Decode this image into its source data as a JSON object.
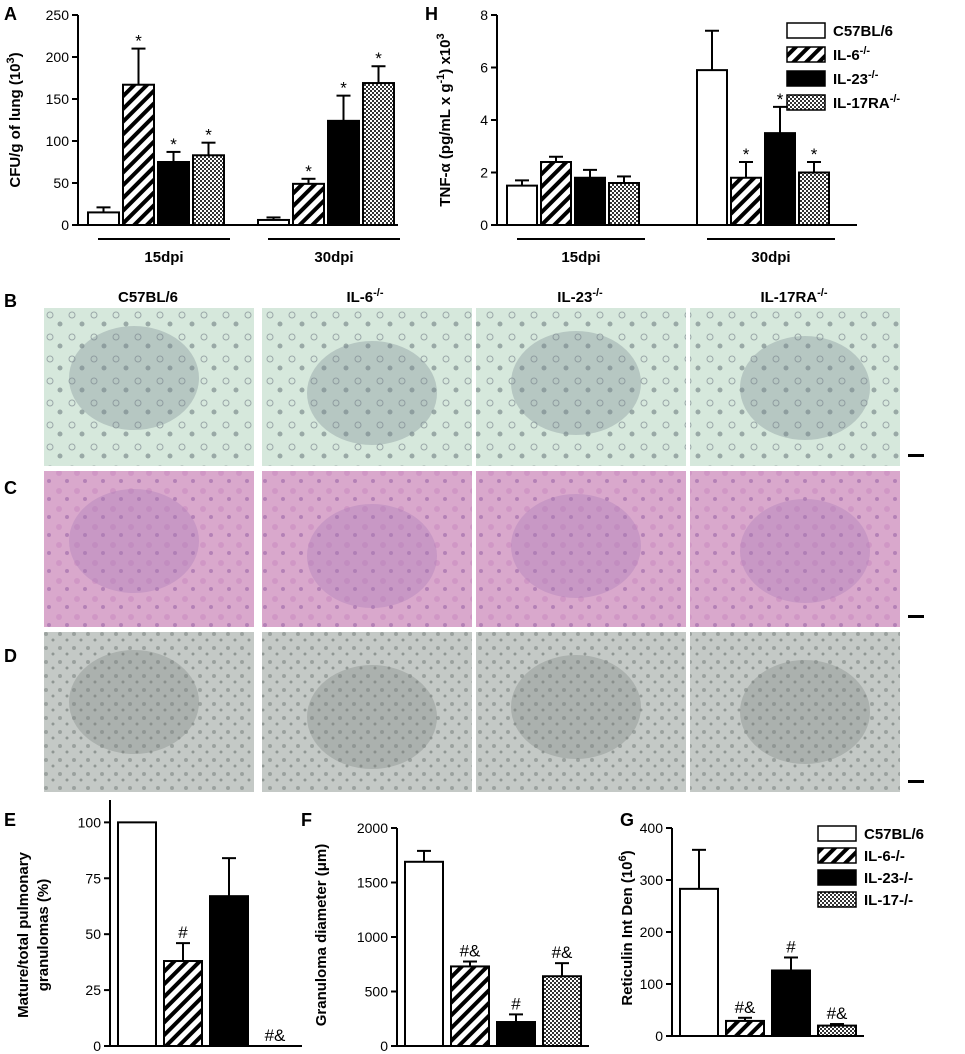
{
  "colors": {
    "white": "#ffffff",
    "black": "#000000",
    "stain_green": "#d6e8dc",
    "stain_he": "#d9a8cc",
    "stain_ret": "#c4c9c6"
  },
  "panel_labels": {
    "A": "A",
    "H": "H",
    "B": "B",
    "C": "C",
    "D": "D",
    "E": "E",
    "F": "F",
    "G": "G"
  },
  "legend_top": [
    {
      "label": "C57BL/6",
      "fill": "white"
    },
    {
      "label": "IL-6",
      "sup": "-/-",
      "fill": "hatch"
    },
    {
      "label": "IL-23",
      "sup": "-/-",
      "fill": "black"
    },
    {
      "label": "IL-17RA",
      "sup": "-/-",
      "fill": "check"
    }
  ],
  "legend_bottom": [
    {
      "label": "C57BL/6",
      "fill": "white"
    },
    {
      "label": "IL-6-/-",
      "fill": "hatch"
    },
    {
      "label": "IL-23-/-",
      "fill": "black"
    },
    {
      "label": "IL-17-/-",
      "fill": "check"
    }
  ],
  "histology": {
    "columns": [
      {
        "label": "C57BL/6",
        "sup": ""
      },
      {
        "label": "IL-6",
        "sup": "-/-"
      },
      {
        "label": "IL-23",
        "sup": "-/-"
      },
      {
        "label": "IL-17RA",
        "sup": "-/-"
      }
    ],
    "rows": [
      "B",
      "C",
      "D"
    ]
  },
  "chart_data": [
    {
      "id": "A",
      "type": "bar",
      "ylabel": "CFU/g of lung (10",
      "ylabel_sup": "3",
      "ylabel_end": ")",
      "ylim": [
        0,
        250
      ],
      "yticks": [
        0,
        50,
        100,
        150,
        200,
        250
      ],
      "groups": [
        "15dpi",
        "30dpi"
      ],
      "series": [
        {
          "name": "C57BL/6",
          "fill": "white",
          "values": [
            15,
            6
          ],
          "errors": [
            6,
            3
          ],
          "labels": [
            "",
            ""
          ]
        },
        {
          "name": "IL-6-/-",
          "fill": "hatch",
          "values": [
            167,
            49
          ],
          "errors": [
            43,
            6
          ],
          "labels": [
            "*",
            "*"
          ]
        },
        {
          "name": "IL-23-/-",
          "fill": "black",
          "values": [
            75,
            124
          ],
          "errors": [
            12,
            30
          ],
          "labels": [
            "*",
            "*"
          ]
        },
        {
          "name": "IL-17RA-/-",
          "fill": "check",
          "values": [
            83,
            169
          ],
          "errors": [
            15,
            20
          ],
          "labels": [
            "*",
            "*"
          ]
        }
      ]
    },
    {
      "id": "H",
      "type": "bar",
      "ylabel": "TNF-α (pg/mL x g",
      "ylabel_sup": "-1",
      "ylabel_end": ") x10",
      "ylabel_sup2": "3",
      "ylim": [
        0,
        8
      ],
      "yticks": [
        0,
        2,
        4,
        6,
        8
      ],
      "groups": [
        "15dpi",
        "30dpi"
      ],
      "series": [
        {
          "name": "C57BL/6",
          "fill": "white",
          "values": [
            1.5,
            5.9
          ],
          "errors": [
            0.2,
            1.5
          ],
          "labels": [
            "",
            ""
          ]
        },
        {
          "name": "IL-6-/-",
          "fill": "hatch",
          "values": [
            2.4,
            1.8
          ],
          "errors": [
            0.2,
            0.6
          ],
          "labels": [
            "",
            "*"
          ]
        },
        {
          "name": "IL-23-/-",
          "fill": "black",
          "values": [
            1.8,
            3.5
          ],
          "errors": [
            0.3,
            1.0
          ],
          "labels": [
            "",
            "*"
          ]
        },
        {
          "name": "IL-17RA-/-",
          "fill": "check",
          "values": [
            1.6,
            2.0
          ],
          "errors": [
            0.25,
            0.4
          ],
          "labels": [
            "",
            "*"
          ]
        }
      ]
    },
    {
      "id": "E",
      "type": "bar",
      "ylabel": "Mature/total pulmonary",
      "ylabel2": "granulomas (%)",
      "ylim": [
        0,
        110
      ],
      "yticks": [
        0,
        25,
        50,
        75,
        100
      ],
      "bars": [
        {
          "name": "C57BL/6",
          "fill": "white",
          "value": 100,
          "error": 0,
          "label": ""
        },
        {
          "name": "IL-6-/-",
          "fill": "hatch",
          "value": 38,
          "error": 8,
          "label": "#"
        },
        {
          "name": "IL-23-/-",
          "fill": "black",
          "value": 67,
          "error": 17,
          "label": ""
        },
        {
          "name": "IL-17-/-",
          "fill": "check",
          "value": 0,
          "error": 0,
          "label": "#&"
        }
      ]
    },
    {
      "id": "F",
      "type": "bar",
      "ylabel": "Granuloma diameter (μm)",
      "ylim": [
        0,
        2000
      ],
      "yticks": [
        0,
        500,
        1000,
        1500,
        2000
      ],
      "bars": [
        {
          "name": "C57BL/6",
          "fill": "white",
          "value": 1690,
          "error": 100,
          "label": ""
        },
        {
          "name": "IL-6-/-",
          "fill": "hatch",
          "value": 730,
          "error": 45,
          "label": "#&"
        },
        {
          "name": "IL-23-/-",
          "fill": "black",
          "value": 220,
          "error": 70,
          "label": "#"
        },
        {
          "name": "IL-17-/-",
          "fill": "check",
          "value": 640,
          "error": 120,
          "label": "#&"
        }
      ]
    },
    {
      "id": "G",
      "type": "bar",
      "ylabel": "Reticulin Int Den (10",
      "ylabel_sup": "6",
      "ylabel_end": ")",
      "ylim": [
        0,
        400
      ],
      "yticks": [
        0,
        100,
        200,
        300,
        400
      ],
      "bars": [
        {
          "name": "C57BL/6",
          "fill": "white",
          "value": 283,
          "error": 75,
          "label": ""
        },
        {
          "name": "IL-6-/-",
          "fill": "hatch",
          "value": 29,
          "error": 6,
          "label": "#&"
        },
        {
          "name": "IL-23-/-",
          "fill": "black",
          "value": 126,
          "error": 25,
          "label": "#"
        },
        {
          "name": "IL-17-/-",
          "fill": "check",
          "value": 20,
          "error": 3,
          "label": "#&"
        }
      ]
    }
  ]
}
